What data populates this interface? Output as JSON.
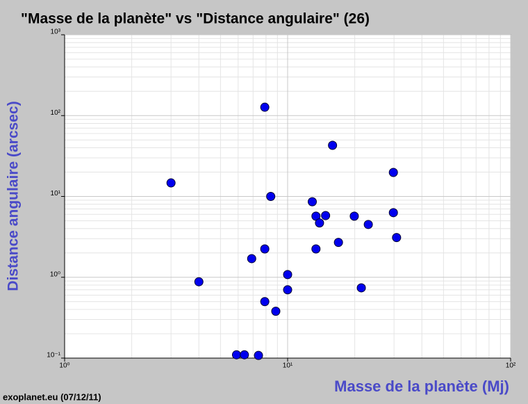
{
  "chart_data": {
    "type": "scatter",
    "title": "\"Masse de la planète\"  vs \"Distance angulaire\" (26)",
    "x_label": "Masse de la planète (Mj)",
    "y_label": "Distance angulaire (arcsec)",
    "footer": "exoplanet.eu (07/12/11)",
    "x_log": true,
    "y_log": true,
    "grid": true,
    "color": "#0000ee",
    "xlim": [
      1,
      100
    ],
    "ylim": [
      0.1,
      1000
    ],
    "xticks": [
      {
        "value": 1,
        "label": "10⁰"
      },
      {
        "value": 10,
        "label": "10¹"
      },
      {
        "value": 100,
        "label": "10²"
      }
    ],
    "yticks": [
      {
        "value": 0.1,
        "label": "10⁻¹"
      },
      {
        "value": 1,
        "label": "10⁰"
      },
      {
        "value": 10,
        "label": "10¹"
      },
      {
        "value": 100,
        "label": "10²"
      },
      {
        "value": 1000,
        "label": "10³"
      }
    ],
    "x": [
      3,
      4,
      5.9,
      6.4,
      7.4,
      6.9,
      7.9,
      7.9,
      7.9,
      8.4,
      8.85,
      10,
      10,
      12.9,
      13.4,
      13.9,
      13.4,
      14.8,
      15.9,
      16.9,
      19.9,
      21.4,
      23,
      29.8,
      29.8,
      30.8
    ],
    "y": [
      14.7,
      0.88,
      0.11,
      0.11,
      0.108,
      1.7,
      127,
      2.24,
      0.5,
      10,
      0.38,
      1.08,
      0.7,
      8.6,
      5.7,
      4.7,
      2.24,
      5.8,
      42.9,
      2.7,
      5.7,
      0.74,
      4.5,
      19.8,
      6.3,
      3.1
    ]
  }
}
